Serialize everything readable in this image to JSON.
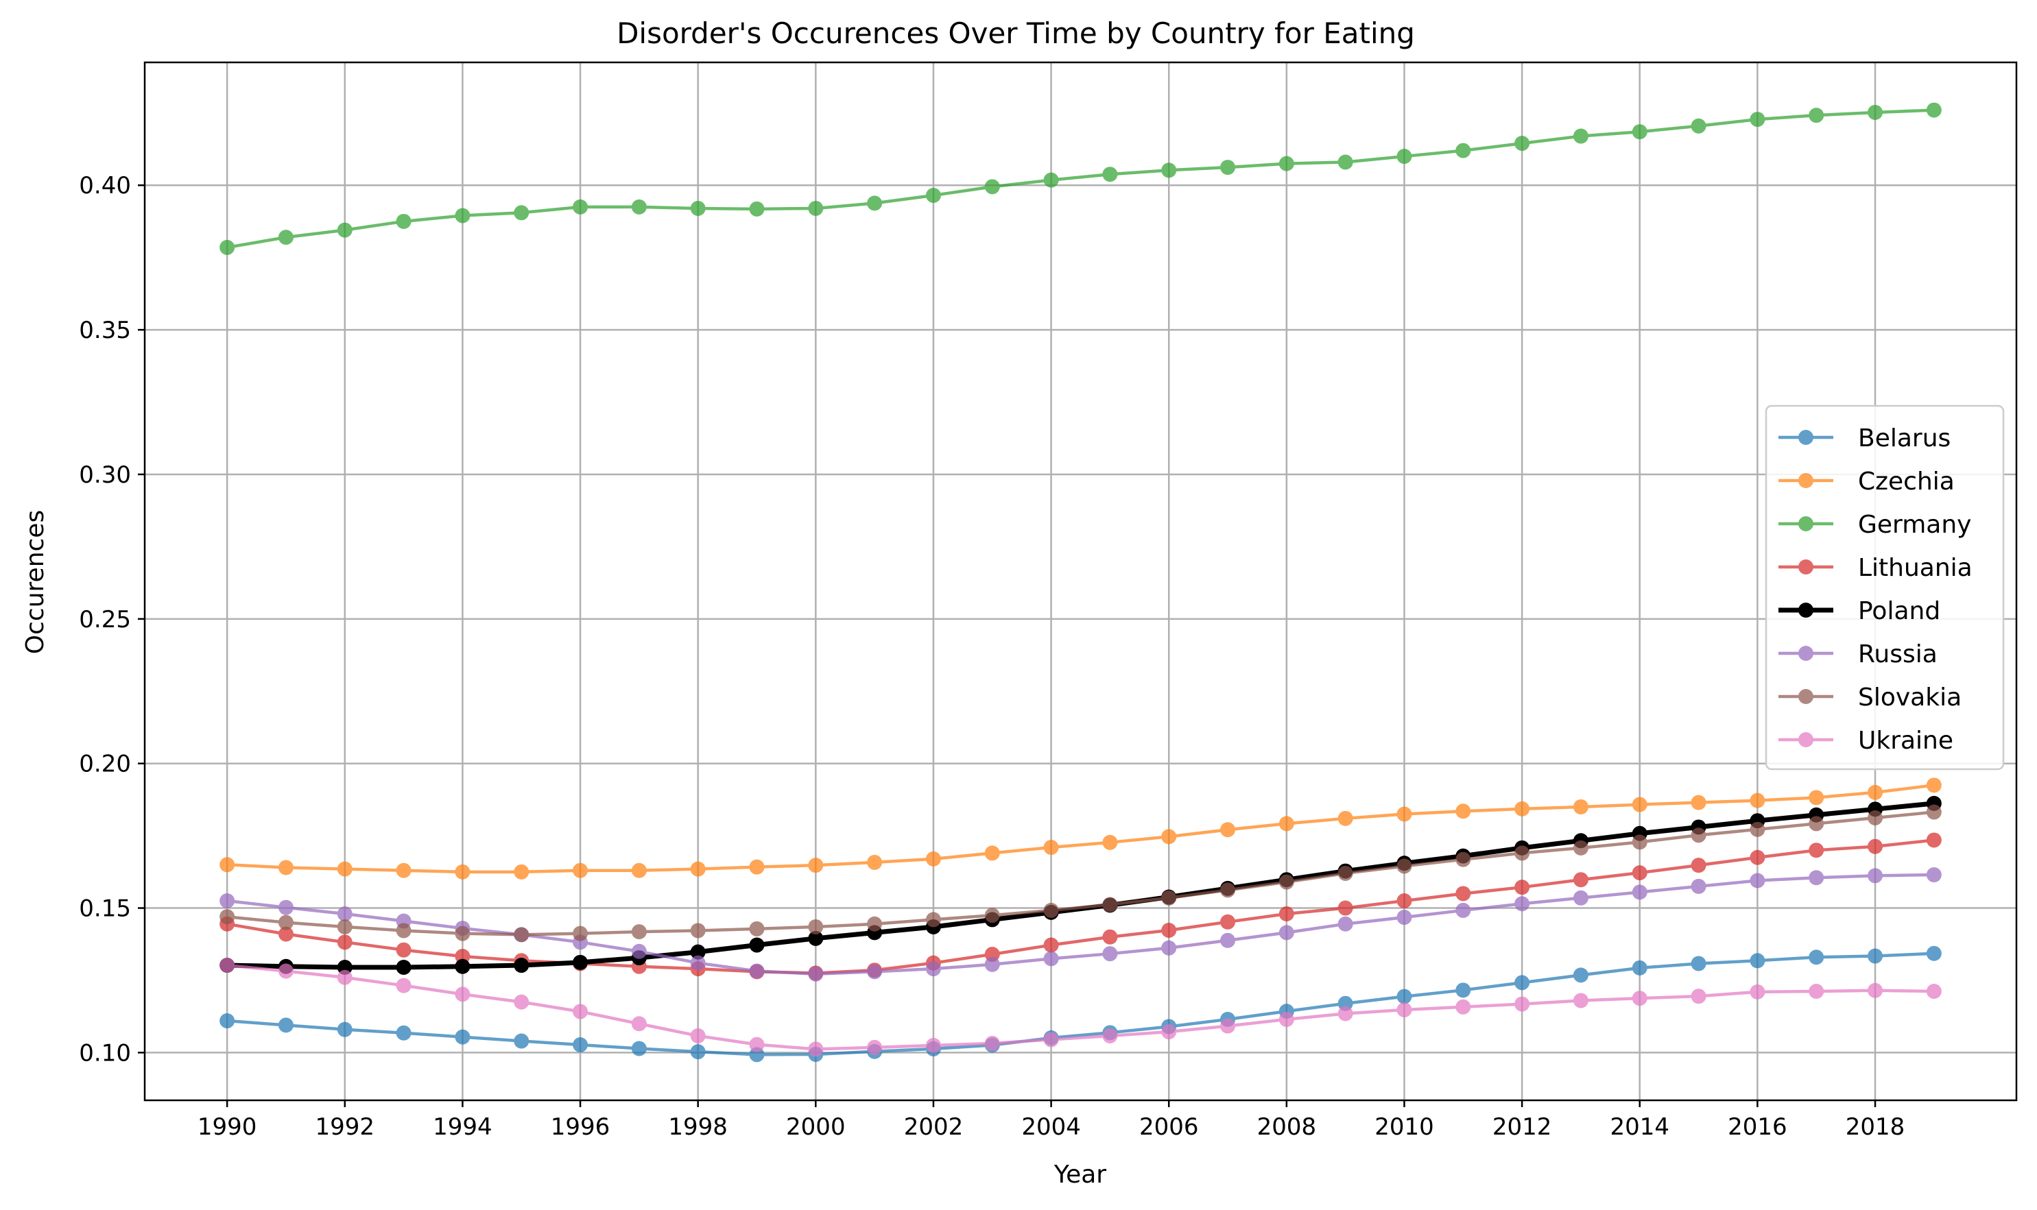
{
  "chart_data": {
    "type": "line",
    "title": "Disorder's Occurences Over Time by Country for Eating",
    "xlabel": "Year",
    "ylabel": "Occurences",
    "xlim": [
      1988.6,
      2020.4
    ],
    "ylim": [
      0.0835,
      0.4425
    ],
    "grid": true,
    "legend_position": "center-right",
    "x_ticks": [
      1990,
      1992,
      1994,
      1996,
      1998,
      2000,
      2002,
      2004,
      2006,
      2008,
      2010,
      2012,
      2014,
      2016,
      2018
    ],
    "y_ticks": [
      "0.10",
      "0.15",
      "0.20",
      "0.25",
      "0.30",
      "0.35",
      "0.40"
    ],
    "x": [
      1990,
      1991,
      1992,
      1993,
      1994,
      1995,
      1996,
      1997,
      1998,
      1999,
      2000,
      2001,
      2002,
      2003,
      2004,
      2005,
      2006,
      2007,
      2008,
      2009,
      2010,
      2011,
      2012,
      2013,
      2014,
      2015,
      2016,
      2017,
      2018,
      2019
    ],
    "series": [
      {
        "name": "Belarus",
        "color": "#1f77b4",
        "values": [
          0.111,
          0.1095,
          0.108,
          0.1068,
          0.1054,
          0.104,
          0.1027,
          0.1014,
          0.1003,
          0.0993,
          0.0994,
          0.1004,
          0.1013,
          0.1026,
          0.1051,
          0.1069,
          0.109,
          0.1115,
          0.1143,
          0.117,
          0.1194,
          0.1216,
          0.1242,
          0.1268,
          0.1293,
          0.1308,
          0.1318,
          0.133,
          0.1334,
          0.1343
        ]
      },
      {
        "name": "Czechia",
        "color": "#ff7f0e",
        "values": [
          0.165,
          0.164,
          0.1635,
          0.163,
          0.1625,
          0.1625,
          0.163,
          0.163,
          0.1635,
          0.1642,
          0.1648,
          0.1658,
          0.167,
          0.169,
          0.171,
          0.1727,
          0.1747,
          0.1771,
          0.1792,
          0.181,
          0.1825,
          0.1835,
          0.1843,
          0.185,
          0.1858,
          0.1865,
          0.1872,
          0.1882,
          0.19,
          0.1925
        ]
      },
      {
        "name": "Germany",
        "color": "#2ca02c",
        "values": [
          0.3785,
          0.382,
          0.3845,
          0.3875,
          0.3895,
          0.3905,
          0.3925,
          0.3925,
          0.392,
          0.3918,
          0.392,
          0.3938,
          0.3965,
          0.3995,
          0.4018,
          0.4038,
          0.4052,
          0.4062,
          0.4075,
          0.408,
          0.41,
          0.412,
          0.4145,
          0.417,
          0.4185,
          0.4205,
          0.4228,
          0.4242,
          0.4252,
          0.426
        ]
      },
      {
        "name": "Lithuania",
        "color": "#d62728",
        "values": [
          0.1445,
          0.141,
          0.1382,
          0.1355,
          0.1333,
          0.1318,
          0.1308,
          0.1298,
          0.129,
          0.128,
          0.1275,
          0.1285,
          0.131,
          0.134,
          0.1372,
          0.14,
          0.1423,
          0.1452,
          0.148,
          0.15,
          0.1525,
          0.155,
          0.1572,
          0.1598,
          0.1622,
          0.1648,
          0.1675,
          0.17,
          0.1713,
          0.1735
        ]
      },
      {
        "name": "Poland",
        "color": "#000000",
        "values": [
          0.1302,
          0.1298,
          0.1295,
          0.1295,
          0.1298,
          0.1302,
          0.1312,
          0.1328,
          0.1348,
          0.1372,
          0.1395,
          0.1415,
          0.1435,
          0.146,
          0.1485,
          0.151,
          0.1538,
          0.1568,
          0.1598,
          0.1628,
          0.1655,
          0.168,
          0.1708,
          0.1733,
          0.1758,
          0.178,
          0.1802,
          0.1822,
          0.1842,
          0.1862
        ]
      },
      {
        "name": "Russia",
        "color": "#9467bd",
        "values": [
          0.1525,
          0.1502,
          0.148,
          0.1455,
          0.143,
          0.1408,
          0.1382,
          0.135,
          0.131,
          0.1282,
          0.1272,
          0.128,
          0.129,
          0.1305,
          0.1325,
          0.1342,
          0.1362,
          0.1388,
          0.1415,
          0.1445,
          0.1468,
          0.1492,
          0.1515,
          0.1535,
          0.1555,
          0.1575,
          0.1595,
          0.1605,
          0.1612,
          0.1615
        ]
      },
      {
        "name": "Slovakia",
        "color": "#8c564b",
        "values": [
          0.147,
          0.145,
          0.1435,
          0.1422,
          0.1412,
          0.1408,
          0.1412,
          0.1418,
          0.1422,
          0.1428,
          0.1435,
          0.1445,
          0.146,
          0.1475,
          0.1492,
          0.1512,
          0.1535,
          0.1562,
          0.159,
          0.162,
          0.1645,
          0.1668,
          0.169,
          0.1708,
          0.1728,
          0.1752,
          0.1772,
          0.1792,
          0.1812,
          0.1832
        ]
      },
      {
        "name": "Ukraine",
        "color": "#e377c2",
        "values": [
          0.1302,
          0.1282,
          0.126,
          0.1232,
          0.1202,
          0.1175,
          0.1142,
          0.11,
          0.1058,
          0.1028,
          0.1012,
          0.1018,
          0.1025,
          0.1032,
          0.1045,
          0.1058,
          0.1072,
          0.1092,
          0.1115,
          0.1135,
          0.1148,
          0.1158,
          0.1168,
          0.118,
          0.1188,
          0.1195,
          0.121,
          0.1212,
          0.1215,
          0.1212
        ]
      }
    ]
  }
}
